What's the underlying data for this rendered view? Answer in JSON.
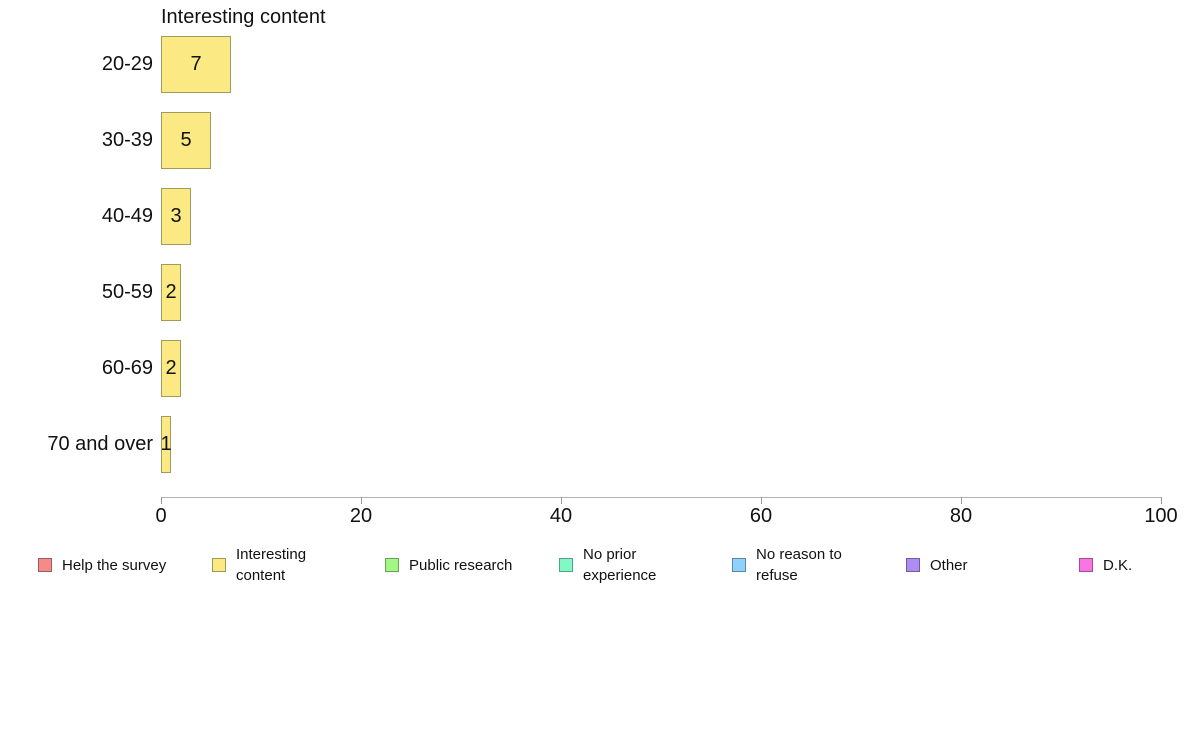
{
  "chart_data": {
    "type": "bar",
    "orientation": "horizontal",
    "title": "Interesting content",
    "categories": [
      "20-29",
      "30-39",
      "40-49",
      "50-59",
      "60-69",
      "70 and over"
    ],
    "values": [
      7,
      5,
      3,
      2,
      2,
      1
    ],
    "xlabel": "",
    "ylabel": "",
    "xlim": [
      0,
      100
    ],
    "xticks": [
      0,
      20,
      40,
      60,
      80,
      100
    ],
    "grid": false,
    "legend_position": "bottom",
    "series_color": "#FBE983",
    "legend": [
      {
        "label": "Help the survey",
        "color": "#F48B8B"
      },
      {
        "label": "Interesting content",
        "color": "#FBE983"
      },
      {
        "label": "Public research",
        "color": "#A2F784"
      },
      {
        "label": "No prior experience",
        "color": "#80F9C7"
      },
      {
        "label": "No reason to refuse",
        "color": "#8ED1FA"
      },
      {
        "label": "Other",
        "color": "#AE8DF2"
      },
      {
        "label": "D.K.",
        "color": "#FA75E3"
      }
    ]
  }
}
